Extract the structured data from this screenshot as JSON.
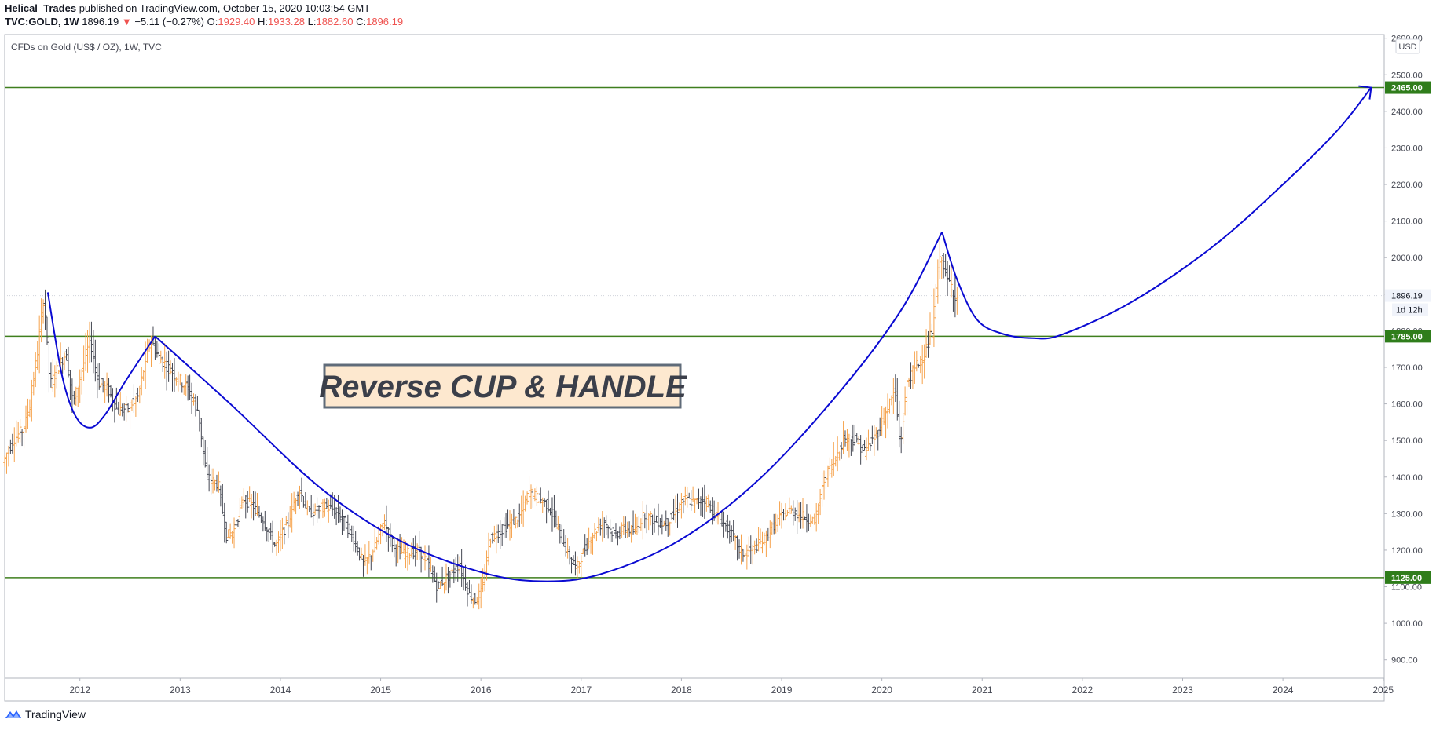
{
  "header": {
    "author": "Helical_Trades",
    "published_text": "published on TradingView.com, October 15, 2020 10:03:54 GMT",
    "symbol": "TVC:GOLD, 1W",
    "last": "1896.19",
    "change_arrow": "▼",
    "change": "−5.11 (−0.27%)",
    "o_label": "O:",
    "o_value": "1929.40",
    "h_label": "H:",
    "h_value": "1933.28",
    "l_label": "L:",
    "l_value": "1882.60",
    "c_label": "C:",
    "c_value": "1896.19"
  },
  "footer": {
    "brand": "TradingView",
    "logo_icon": "tradingview-logo-icon"
  },
  "colors": {
    "axis_line": "#b2b5be",
    "level_line": "#3f7f1e",
    "level_label_bg": "#2f7d1b",
    "curve": "#0a0ad2",
    "annotation_bg": "#fde8cf",
    "annotation_border": "#5f6b79",
    "up_bar": "#f6a24b",
    "down_bar": "#434651",
    "price_label_bg": "#f0f3fa"
  },
  "chart_data": {
    "type": "ohlc_bar",
    "title": "CFDs on Gold (US$ / OZ), 1W, TVC",
    "currency_button": "USD",
    "ylim": [
      850,
      2610
    ],
    "xlim": [
      2011.25,
      2025.01
    ],
    "y_ticks": [
      "900.00",
      "1000.00",
      "1100.00",
      "1200.00",
      "1300.00",
      "1400.00",
      "1500.00",
      "1600.00",
      "1700.00",
      "1800.00",
      "1900.00",
      "2000.00",
      "2100.00",
      "2200.00",
      "2300.00",
      "2400.00",
      "2500.00",
      "2600.00"
    ],
    "x_ticks": [
      "2012",
      "2013",
      "2014",
      "2015",
      "2016",
      "2017",
      "2018",
      "2019",
      "2020",
      "2021",
      "2022",
      "2023",
      "2024",
      "2025"
    ],
    "horizontal_levels": [
      {
        "value": 2465.0,
        "label": "2465.00"
      },
      {
        "value": 1785.0,
        "label": "1785.00"
      },
      {
        "value": 1125.0,
        "label": "1125.00"
      }
    ],
    "last_price": {
      "value": 1896.19,
      "label": "1896.19",
      "countdown": "1d 12h"
    },
    "annotation": "Reverse CUP & HANDLE",
    "price_path": [
      [
        2011.25,
        1440
      ],
      [
        2011.35,
        1500
      ],
      [
        2011.45,
        1530
      ],
      [
        2011.52,
        1600
      ],
      [
        2011.6,
        1750
      ],
      [
        2011.66,
        1900
      ],
      [
        2011.72,
        1650
      ],
      [
        2011.8,
        1700
      ],
      [
        2011.88,
        1740
      ],
      [
        2011.95,
        1600
      ],
      [
        2012.0,
        1650
      ],
      [
        2012.12,
        1780
      ],
      [
        2012.2,
        1660
      ],
      [
        2012.3,
        1640
      ],
      [
        2012.4,
        1580
      ],
      [
        2012.5,
        1590
      ],
      [
        2012.6,
        1620
      ],
      [
        2012.72,
        1780
      ],
      [
        2012.8,
        1730
      ],
      [
        2012.9,
        1700
      ],
      [
        2013.0,
        1670
      ],
      [
        2013.1,
        1640
      ],
      [
        2013.2,
        1580
      ],
      [
        2013.28,
        1400
      ],
      [
        2013.4,
        1380
      ],
      [
        2013.48,
        1240
      ],
      [
        2013.55,
        1250
      ],
      [
        2013.65,
        1340
      ],
      [
        2013.75,
        1320
      ],
      [
        2013.85,
        1280
      ],
      [
        2013.97,
        1210
      ],
      [
        2014.1,
        1280
      ],
      [
        2014.2,
        1370
      ],
      [
        2014.3,
        1300
      ],
      [
        2014.45,
        1320
      ],
      [
        2014.55,
        1310
      ],
      [
        2014.65,
        1280
      ],
      [
        2014.75,
        1230
      ],
      [
        2014.85,
        1160
      ],
      [
        2014.95,
        1200
      ],
      [
        2015.05,
        1280
      ],
      [
        2015.15,
        1210
      ],
      [
        2015.25,
        1190
      ],
      [
        2015.4,
        1200
      ],
      [
        2015.5,
        1160
      ],
      [
        2015.58,
        1100
      ],
      [
        2015.7,
        1130
      ],
      [
        2015.8,
        1160
      ],
      [
        2015.9,
        1080
      ],
      [
        2015.97,
        1060
      ],
      [
        2016.05,
        1110
      ],
      [
        2016.1,
        1230
      ],
      [
        2016.2,
        1250
      ],
      [
        2016.3,
        1270
      ],
      [
        2016.4,
        1290
      ],
      [
        2016.5,
        1360
      ],
      [
        2016.6,
        1340
      ],
      [
        2016.7,
        1320
      ],
      [
        2016.8,
        1250
      ],
      [
        2016.9,
        1180
      ],
      [
        2016.97,
        1150
      ],
      [
        2017.05,
        1200
      ],
      [
        2017.15,
        1250
      ],
      [
        2017.25,
        1280
      ],
      [
        2017.35,
        1240
      ],
      [
        2017.45,
        1260
      ],
      [
        2017.55,
        1250
      ],
      [
        2017.65,
        1300
      ],
      [
        2017.75,
        1280
      ],
      [
        2017.85,
        1270
      ],
      [
        2017.95,
        1300
      ],
      [
        2018.05,
        1340
      ],
      [
        2018.15,
        1330
      ],
      [
        2018.25,
        1340
      ],
      [
        2018.35,
        1300
      ],
      [
        2018.45,
        1270
      ],
      [
        2018.55,
        1230
      ],
      [
        2018.62,
        1190
      ],
      [
        2018.72,
        1200
      ],
      [
        2018.85,
        1230
      ],
      [
        2018.97,
        1280
      ],
      [
        2019.1,
        1310
      ],
      [
        2019.25,
        1290
      ],
      [
        2019.35,
        1280
      ],
      [
        2019.45,
        1400
      ],
      [
        2019.55,
        1450
      ],
      [
        2019.65,
        1510
      ],
      [
        2019.75,
        1500
      ],
      [
        2019.85,
        1470
      ],
      [
        2019.97,
        1520
      ],
      [
        2020.05,
        1570
      ],
      [
        2020.15,
        1640
      ],
      [
        2020.2,
        1480
      ],
      [
        2020.27,
        1660
      ],
      [
        2020.35,
        1700
      ],
      [
        2020.45,
        1740
      ],
      [
        2020.52,
        1800
      ],
      [
        2020.58,
        1970
      ],
      [
        2020.62,
        2010
      ],
      [
        2020.66,
        1940
      ],
      [
        2020.72,
        1920
      ],
      [
        2020.76,
        1890
      ]
    ],
    "curves": [
      {
        "name": "left handle",
        "points": [
          [
            2011.68,
            1905
          ],
          [
            2011.82,
            1680
          ],
          [
            2011.95,
            1570
          ],
          [
            2012.1,
            1535
          ],
          [
            2012.25,
            1570
          ],
          [
            2012.45,
            1660
          ],
          [
            2012.75,
            1785
          ]
        ]
      },
      {
        "name": "cup",
        "points": [
          [
            2012.75,
            1785
          ],
          [
            2013.5,
            1600
          ],
          [
            2014.4,
            1370
          ],
          [
            2015.2,
            1225
          ],
          [
            2016.0,
            1140
          ],
          [
            2016.6,
            1115
          ],
          [
            2017.2,
            1135
          ],
          [
            2018.0,
            1230
          ],
          [
            2018.8,
            1400
          ],
          [
            2019.6,
            1640
          ],
          [
            2020.2,
            1860
          ],
          [
            2020.6,
            2070
          ]
        ]
      },
      {
        "name": "handle",
        "points": [
          [
            2020.6,
            2070
          ],
          [
            2020.75,
            1940
          ],
          [
            2020.95,
            1830
          ],
          [
            2021.2,
            1792
          ],
          [
            2021.5,
            1780
          ],
          [
            2021.8,
            1790
          ],
          [
            2022.5,
            1880
          ],
          [
            2023.3,
            2030
          ],
          [
            2024.0,
            2200
          ],
          [
            2024.55,
            2350
          ],
          [
            2024.88,
            2465
          ]
        ]
      }
    ]
  }
}
